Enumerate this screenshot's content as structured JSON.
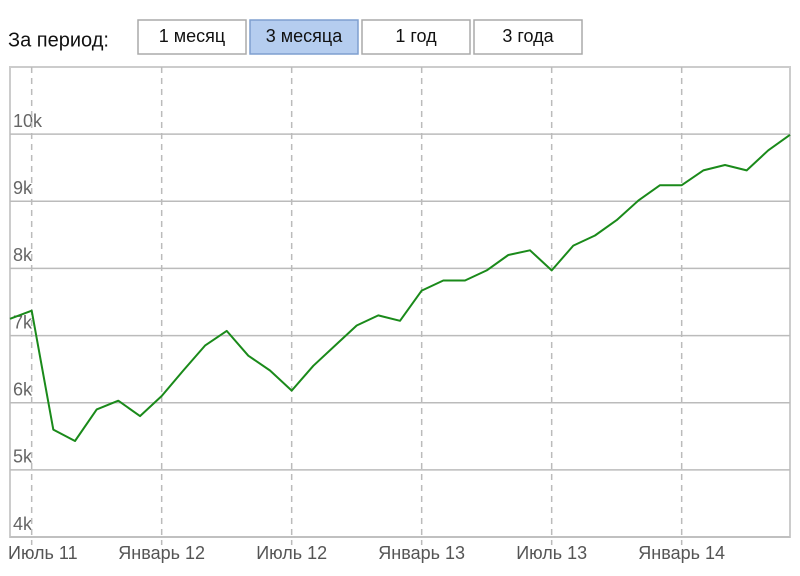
{
  "header": {
    "label": "За период:",
    "buttons": [
      "1 месяц",
      "3 месяца",
      "1 год",
      "3 года"
    ],
    "selected": 1
  },
  "chart_data": {
    "type": "line",
    "x": [
      "2011-06",
      "2011-07",
      "2011-08",
      "2011-09",
      "2011-10",
      "2011-11",
      "2011-12",
      "2012-01",
      "2012-02",
      "2012-03",
      "2012-04",
      "2012-05",
      "2012-06",
      "2012-07",
      "2012-08",
      "2012-09",
      "2012-10",
      "2012-11",
      "2012-12",
      "2013-01",
      "2013-02",
      "2013-03",
      "2013-04",
      "2013-05",
      "2013-06",
      "2013-07",
      "2013-08",
      "2013-09",
      "2013-10",
      "2013-11",
      "2013-12",
      "2014-01",
      "2014-02",
      "2014-03",
      "2014-04",
      "2014-05",
      "2014-06"
    ],
    "values": [
      7250,
      7370,
      5600,
      5430,
      5900,
      6030,
      5800,
      6100,
      6480,
      6850,
      7070,
      6700,
      6480,
      6180,
      6550,
      6850,
      7150,
      7300,
      7220,
      7670,
      7820,
      7820,
      7970,
      8200,
      8270,
      7970,
      8340,
      8490,
      8720,
      9010,
      9240,
      9240,
      9460,
      9540,
      9460,
      9760,
      9990
    ],
    "color": "#1a8a1a",
    "xlim": [
      "2011-06",
      "2014-06"
    ],
    "xticks": [
      {
        "value": "2011-07",
        "label": "Июль 11"
      },
      {
        "value": "2012-01",
        "label": "Январь 12"
      },
      {
        "value": "2012-07",
        "label": "Июль 12"
      },
      {
        "value": "2013-01",
        "label": "Январь 13"
      },
      {
        "value": "2013-07",
        "label": "Июль 13"
      },
      {
        "value": "2014-01",
        "label": "Январь 14"
      }
    ],
    "ylim": [
      4000,
      11000
    ],
    "yticks": [
      {
        "value": 4000,
        "label": "4k"
      },
      {
        "value": 5000,
        "label": "5k"
      },
      {
        "value": 6000,
        "label": "6k"
      },
      {
        "value": 7000,
        "label": "7k"
      },
      {
        "value": 8000,
        "label": "8k"
      },
      {
        "value": 9000,
        "label": "9k"
      },
      {
        "value": 10000,
        "label": "10k"
      }
    ],
    "grid": true
  }
}
